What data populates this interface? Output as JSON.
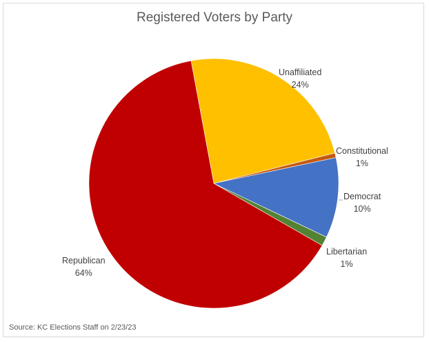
{
  "chart_data": {
    "type": "pie",
    "title": "Registered Voters by Party",
    "start_angle_deg": -10.5,
    "direction": "clockwise",
    "slices": [
      {
        "label": "Unaffiliated",
        "value": 24,
        "display": "24%",
        "color": "#FFC000"
      },
      {
        "label": "Constitutional",
        "value": 0.6,
        "display": "1%",
        "color": "#C55A11"
      },
      {
        "label": "Democrat",
        "value": 10.4,
        "display": "10%",
        "color": "#4472C4"
      },
      {
        "label": "Libertarian",
        "value": 1.2,
        "display": "1%",
        "color": "#548235"
      },
      {
        "label": "Republican",
        "value": 63.8,
        "display": "64%",
        "color": "#C00000"
      }
    ],
    "legend": "none (data labels with category name and percent)",
    "source": "Source:  KC Elections Staff on 2/23/23"
  },
  "labels": {
    "unaffiliated": {
      "name": "Unaffiliated",
      "pct": "24%"
    },
    "constitutional": {
      "name": "Constitutional",
      "pct": "1%"
    },
    "democrat": {
      "name": "Democrat",
      "pct": "10%"
    },
    "libertarian": {
      "name": "Libertarian",
      "pct": "1%"
    },
    "republican": {
      "name": "Republican",
      "pct": "64%"
    }
  }
}
